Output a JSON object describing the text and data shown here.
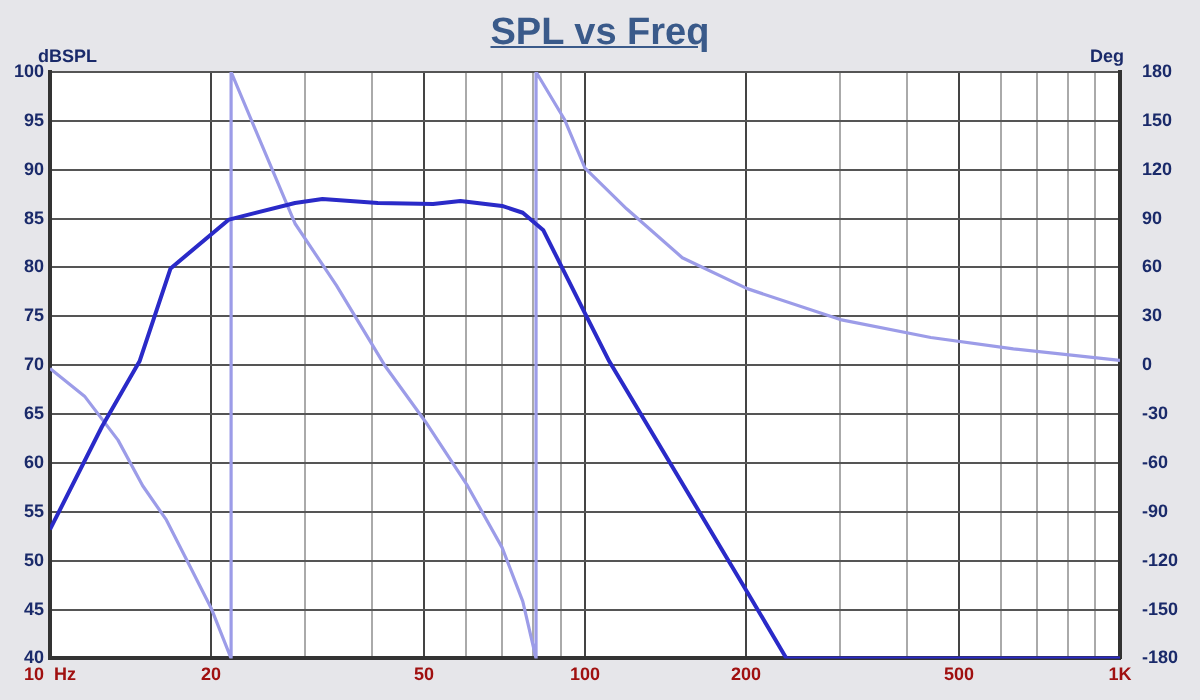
{
  "chart_data": {
    "type": "line",
    "title": "SPL vs Freq",
    "ylabel": "dBSPL",
    "y2label": "Deg",
    "log": "x",
    "grid": true,
    "legend": false,
    "marker": "none",
    "line_style": "solid",
    "xlim": [
      10,
      1000
    ],
    "xticks": [
      {
        "value": 10,
        "label": "10  Hz"
      },
      20,
      {
        "value": 30,
        "label": null
      },
      {
        "value": 40,
        "label": null
      },
      50,
      {
        "value": 60,
        "label": null
      },
      {
        "value": 70,
        "label": null
      },
      {
        "value": 80,
        "label": null
      },
      {
        "value": 90,
        "label": null
      },
      {
        "value": 100,
        "label": "100"
      },
      200,
      {
        "value": 300,
        "label": null
      },
      {
        "value": 400,
        "label": null
      },
      500,
      {
        "value": 600,
        "label": null
      },
      {
        "value": 700,
        "label": null
      },
      {
        "value": 800,
        "label": null
      },
      {
        "value": 900,
        "label": null
      },
      {
        "value": 1000,
        "label": "1K"
      }
    ],
    "ylim": [
      40,
      100
    ],
    "yticks": [
      40,
      45,
      50,
      55,
      60,
      65,
      70,
      75,
      80,
      85,
      90,
      95,
      100
    ],
    "y2lim": [
      -180,
      180
    ],
    "y2ticks": [
      -180,
      -150,
      -120,
      -90,
      -60,
      -30,
      0,
      30,
      60,
      90,
      120,
      150,
      180
    ],
    "series": [
      {
        "color": "#2a2ac8",
        "x": [
          10,
          12.5,
          14.7,
          16.8,
          21.6,
          28.7,
          32.3,
          41,
          52,
          58.5,
          70,
          76.5,
          83.6,
          100,
          111,
          201,
          238,
          1000
        ],
        "values": [
          53.2,
          63.7,
          70.4,
          79.9,
          84.9,
          86.6,
          87,
          86.6,
          86.5,
          86.8,
          86.3,
          85.6,
          83.8,
          75.3,
          70.4,
          46.8,
          40,
          40
        ]
      },
      {
        "color": "#9c9ce8",
        "axis": "y2",
        "x": [
          10,
          11.6,
          13.4,
          14.9,
          16.5,
          18.3,
          20,
          21.8,
          21.8,
          28.7,
          34.3,
          42.2,
          50.4,
          60.3,
          70,
          76.5,
          81,
          81,
          91.5,
          100,
          119.6,
          152,
          201,
          300,
          443,
          632,
          1000
        ],
        "values": [
          -2,
          -19,
          -46,
          -74,
          -95,
          -124,
          -149,
          -180,
          180,
          87,
          49,
          0,
          -35,
          -74,
          -112,
          -145,
          -180,
          180,
          151,
          121,
          96,
          66,
          47,
          28,
          17,
          10,
          3
        ]
      }
    ]
  }
}
